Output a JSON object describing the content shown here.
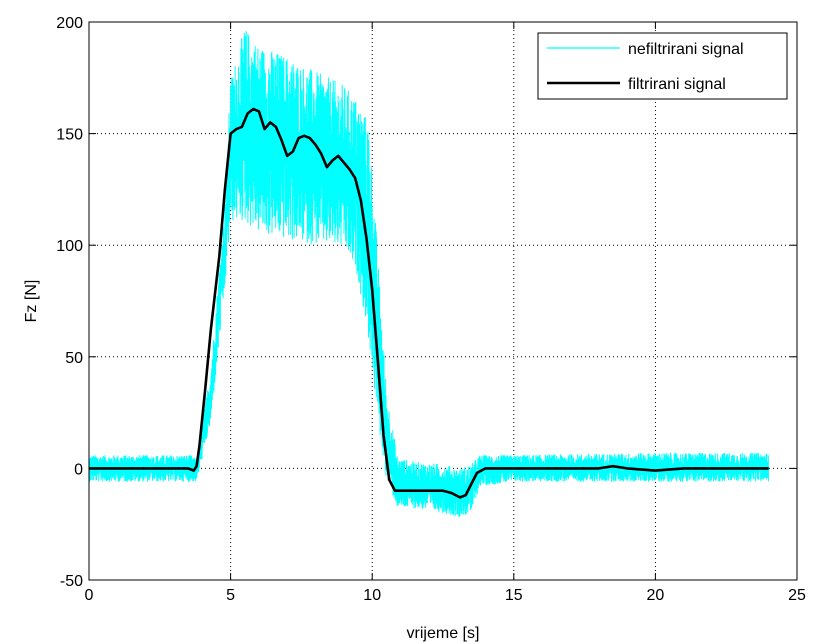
{
  "chart_data": {
    "type": "line",
    "xlabel": "vrijeme [s]",
    "ylabel": "Fz [N]",
    "xlim": [
      0,
      25
    ],
    "ylim": [
      -50,
      200
    ],
    "x_ticks": [
      0,
      5,
      10,
      15,
      20,
      25
    ],
    "y_ticks": [
      -50,
      0,
      50,
      100,
      150,
      200
    ],
    "x_tick_labels": [
      "0",
      "5",
      "10",
      "15",
      "20",
      "25"
    ],
    "y_tick_labels": [
      "-50",
      "0",
      "50",
      "100",
      "150",
      "200"
    ],
    "grid": true,
    "legend_position": "top-right",
    "series": [
      {
        "name": "nefiltrirani signal",
        "color": "#00ffff",
        "style": "noisy band around filtered signal",
        "envelope": {
          "x": [
            0,
            3.6,
            3.8,
            4.3,
            4.8,
            5.0,
            5.5,
            6.0,
            7.0,
            8.0,
            9.0,
            9.5,
            9.9,
            10.2,
            10.5,
            10.9,
            11.5,
            12.5,
            13.1,
            13.5,
            13.8,
            15,
            20,
            24
          ],
          "upper": [
            6,
            6,
            4,
            45,
            120,
            175,
            198,
            190,
            185,
            178,
            172,
            165,
            155,
            95,
            35,
            5,
            3,
            2,
            0,
            2,
            6,
            6,
            7,
            7
          ],
          "lower": [
            -6,
            -6,
            -6,
            20,
            80,
            110,
            110,
            105,
            102,
            100,
            98,
            85,
            55,
            20,
            -5,
            -18,
            -18,
            -20,
            -22,
            -20,
            -8,
            -6,
            -6,
            -6
          ]
        }
      },
      {
        "name": "filtrirani signal",
        "color": "#000000",
        "x": [
          0,
          3.5,
          3.7,
          3.8,
          3.9,
          4.1,
          4.3,
          4.6,
          4.8,
          5.0,
          5.2,
          5.4,
          5.6,
          5.8,
          6.0,
          6.2,
          6.4,
          6.6,
          6.8,
          7.0,
          7.2,
          7.4,
          7.6,
          7.8,
          8.0,
          8.2,
          8.4,
          8.6,
          8.8,
          9.0,
          9.2,
          9.4,
          9.6,
          9.8,
          10.0,
          10.2,
          10.4,
          10.6,
          10.8,
          11.0,
          11.5,
          12.0,
          12.5,
          12.8,
          13.1,
          13.3,
          13.5,
          13.7,
          14.0,
          15,
          16,
          17,
          18,
          18.5,
          19,
          20,
          21,
          22,
          23,
          24
        ],
        "y": [
          0,
          0,
          -1,
          1,
          10,
          35,
          62,
          95,
          125,
          150,
          152,
          153,
          159,
          161,
          160,
          152,
          155,
          153,
          147,
          140,
          142,
          148,
          149,
          148,
          145,
          141,
          135,
          138,
          140,
          137,
          134,
          130,
          120,
          103,
          80,
          48,
          15,
          -5,
          -10,
          -10,
          -10,
          -10,
          -10,
          -11,
          -13,
          -12,
          -7,
          -2,
          0,
          0,
          0,
          0,
          0,
          1,
          0,
          -1,
          0,
          0,
          0,
          0
        ]
      }
    ]
  }
}
